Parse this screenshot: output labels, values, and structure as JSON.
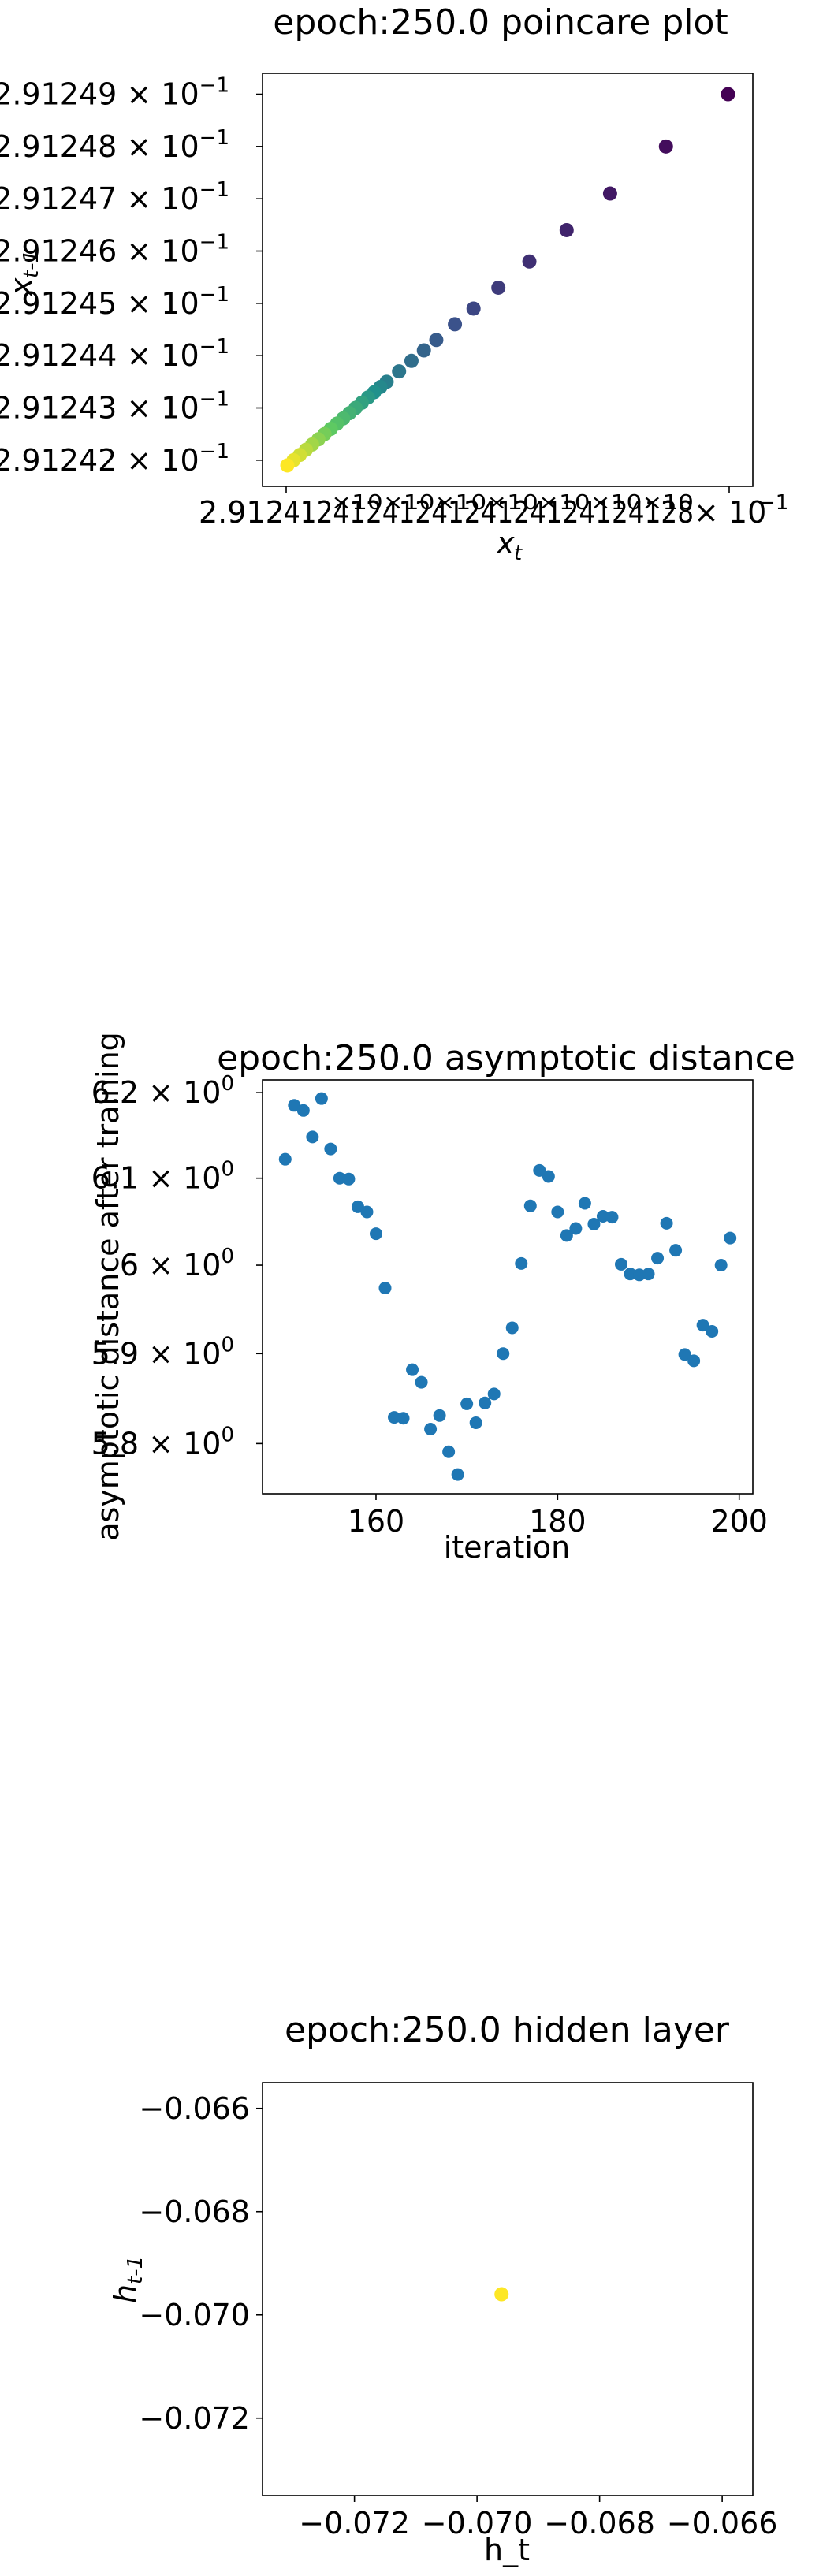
{
  "charts": [
    {
      "title": "epoch:250.0 poincare plot",
      "xlabel": "x_t",
      "xlabel_sub": "t",
      "ylabel": "x_{t-1}",
      "ylabel_sub": "t-1",
      "xtick_text": "2.9124…2.91248 × 10^-1 (overlapping labels)",
      "yticks": [
        {
          "value": 0.291249,
          "mant": "2.91249",
          "exp": "-1"
        },
        {
          "value": 0.291248,
          "mant": "2.91248",
          "exp": "-1"
        },
        {
          "value": 0.291247,
          "mant": "2.91247",
          "exp": "-1"
        },
        {
          "value": 0.291246,
          "mant": "2.91246",
          "exp": "-1"
        },
        {
          "value": 0.291245,
          "mant": "2.91245",
          "exp": "-1"
        },
        {
          "value": 0.291244,
          "mant": "2.91244",
          "exp": "-1"
        },
        {
          "value": 0.291243,
          "mant": "2.91243",
          "exp": "-1"
        },
        {
          "value": 0.291242,
          "mant": "2.91242",
          "exp": "-1"
        }
      ]
    },
    {
      "title": "epoch:250.0 asymptotic distance",
      "xlabel": "iteration",
      "ylabel": "asymptotic distance after training",
      "xticks": [
        {
          "value": 160,
          "label": "160"
        },
        {
          "value": 180,
          "label": "180"
        },
        {
          "value": 200,
          "label": "200"
        }
      ],
      "yticks": [
        {
          "value": 6.2,
          "mant": "6.2",
          "exp": "0"
        },
        {
          "value": 6.1,
          "mant": "6.1",
          "exp": "0"
        },
        {
          "value": 6.0,
          "mant": "6",
          "exp": "0"
        },
        {
          "value": 5.9,
          "mant": "5.9",
          "exp": "0"
        },
        {
          "value": 5.8,
          "mant": "5.8",
          "exp": "0"
        }
      ]
    },
    {
      "title": "epoch:250.0 hidden layer",
      "xlabel": "h_t",
      "ylabel": "h_{t-1}",
      "ylabel_sub": "t-1",
      "xticks": [
        {
          "value": -0.072,
          "label": "−0.072"
        },
        {
          "value": -0.07,
          "label": "−0.070"
        },
        {
          "value": -0.068,
          "label": "−0.068"
        },
        {
          "value": -0.066,
          "label": "−0.066"
        }
      ],
      "yticks": [
        {
          "value": -0.066,
          "label": "−0.066"
        },
        {
          "value": -0.068,
          "label": "−0.068"
        },
        {
          "value": -0.07,
          "label": "−0.070"
        },
        {
          "value": -0.072,
          "label": "−0.072"
        }
      ]
    }
  ],
  "chart_data": [
    {
      "type": "scatter",
      "title": "epoch:250.0 poincare plot",
      "xlabel": "x_t",
      "ylabel": "x_{t-1}",
      "xlim": [
        0.2912415,
        0.2912494
      ],
      "ylim": [
        0.2912415,
        0.2912494
      ],
      "colormap": "viridis",
      "grid": false,
      "points": [
        [
          0.291249,
          0.291249
        ],
        [
          0.291248,
          0.291248
        ],
        [
          0.2912471,
          0.2912471
        ],
        [
          0.2912464,
          0.2912464
        ],
        [
          0.2912458,
          0.2912458
        ],
        [
          0.2912453,
          0.2912453
        ],
        [
          0.2912449,
          0.2912449
        ],
        [
          0.2912446,
          0.2912446
        ],
        [
          0.2912443,
          0.2912443
        ],
        [
          0.2912441,
          0.2912441
        ],
        [
          0.2912439,
          0.2912439
        ],
        [
          0.2912437,
          0.2912437
        ],
        [
          0.2912435,
          0.2912435
        ],
        [
          0.2912434,
          0.2912434
        ],
        [
          0.2912433,
          0.2912433
        ],
        [
          0.2912432,
          0.2912432
        ],
        [
          0.2912431,
          0.2912431
        ],
        [
          0.291243,
          0.291243
        ],
        [
          0.2912429,
          0.2912429
        ],
        [
          0.2912428,
          0.2912428
        ],
        [
          0.2912427,
          0.2912427
        ],
        [
          0.2912426,
          0.2912426
        ],
        [
          0.2912425,
          0.2912425
        ],
        [
          0.2912424,
          0.2912424
        ],
        [
          0.2912423,
          0.2912423
        ],
        [
          0.2912422,
          0.2912422
        ],
        [
          0.2912421,
          0.2912421
        ],
        [
          0.291242,
          0.291242
        ],
        [
          0.2912419,
          0.2912419
        ]
      ]
    },
    {
      "type": "scatter",
      "title": "epoch:250.0 asymptotic distance",
      "xlabel": "iteration",
      "ylabel": "asymptotic distance after training",
      "xlim": [
        147.5,
        201.5
      ],
      "ylim": [
        5.745,
        6.215
      ],
      "yscale": "log",
      "color": "#1f77b4",
      "grid": false,
      "x": [
        150,
        151,
        152,
        153,
        154,
        155,
        156,
        157,
        158,
        159,
        160,
        161,
        162,
        163,
        164,
        165,
        166,
        167,
        168,
        169,
        170,
        171,
        172,
        173,
        174,
        175,
        176,
        177,
        178,
        179,
        180,
        181,
        182,
        183,
        184,
        185,
        186,
        187,
        188,
        189,
        190,
        191,
        192,
        193,
        194,
        195,
        196,
        197,
        198,
        199
      ],
      "y": [
        6.122,
        6.185,
        6.179,
        6.148,
        6.193,
        6.134,
        6.1,
        6.099,
        6.067,
        6.061,
        6.036,
        5.974,
        5.829,
        5.828,
        5.882,
        5.868,
        5.816,
        5.831,
        5.791,
        5.766,
        5.844,
        5.823,
        5.845,
        5.855,
        5.9,
        5.929,
        6.002,
        6.068,
        6.109,
        6.102,
        6.061,
        6.034,
        6.042,
        6.071,
        6.047,
        6.056,
        6.055,
        6.001,
        5.99,
        5.989,
        5.99,
        6.008,
        6.048,
        6.017,
        5.899,
        5.892,
        5.932,
        5.925,
        6.0,
        6.031
      ]
    },
    {
      "type": "scatter",
      "title": "epoch:250.0 hidden layer",
      "xlabel": "h_t",
      "ylabel": "h_{t-1}",
      "xlim": [
        -0.0735,
        -0.0655
      ],
      "ylim": [
        -0.0735,
        -0.0655
      ],
      "colormap": "viridis",
      "grid": false,
      "points": [
        [
          -0.0696,
          -0.0696
        ]
      ]
    }
  ]
}
